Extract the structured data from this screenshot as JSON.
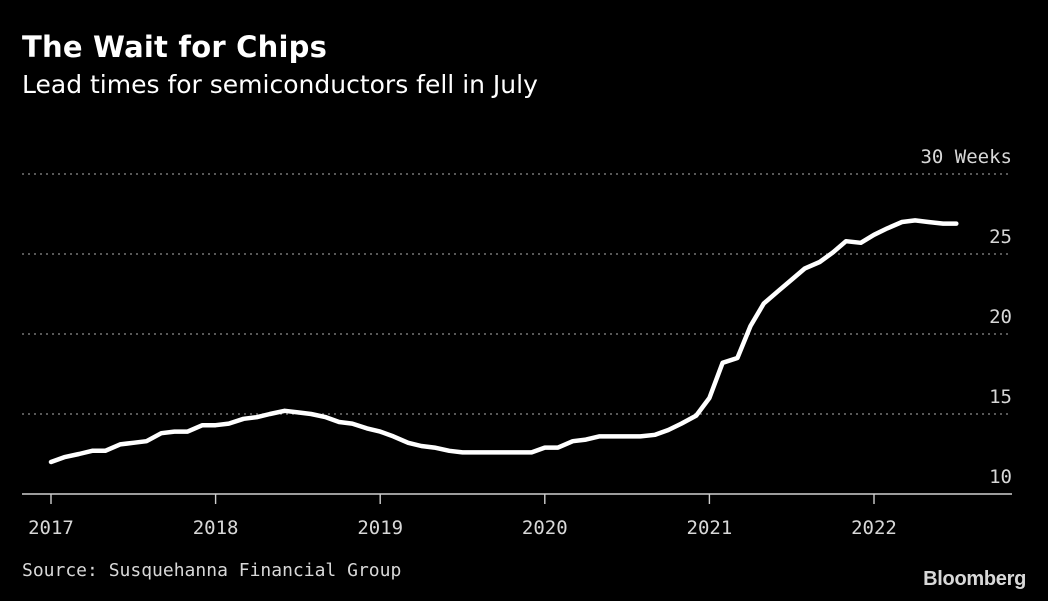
{
  "title": "The Wait for Chips",
  "subtitle": "Lead times for semiconductors fell in July",
  "source": "Source: Susquehanna Financial Group",
  "brand": "Bloomberg",
  "colors": {
    "background": "#000000",
    "line": "#ffffff",
    "grid": "#8c8c8c",
    "text": "#d8d8d8"
  },
  "chart_data": {
    "type": "line",
    "title": "The Wait for Chips",
    "subtitle": "Lead times for semiconductors fell in July",
    "xlabel": "",
    "ylabel": "Weeks",
    "y_unit_label": "30 Weeks",
    "xlim": [
      2017,
      2022.85
    ],
    "ylim": [
      10,
      30
    ],
    "x_ticks": [
      2017,
      2018,
      2019,
      2020,
      2021,
      2022
    ],
    "x_tick_labels": [
      "2017",
      "2018",
      "2019",
      "2020",
      "2021",
      "2022"
    ],
    "y_ticks": [
      10,
      15,
      20,
      25,
      30
    ],
    "y_tick_labels": [
      "10",
      "15",
      "20",
      "25",
      "30 Weeks"
    ],
    "grid": "horizontal dotted",
    "legend": "none",
    "series": [
      {
        "x": [
          2017.0,
          2017.08,
          2017.17,
          2017.25,
          2017.33,
          2017.42,
          2017.5,
          2017.58,
          2017.67,
          2017.75,
          2017.83,
          2017.92,
          2018.0,
          2018.08,
          2018.17,
          2018.25,
          2018.33,
          2018.42,
          2018.5,
          2018.58,
          2018.67,
          2018.75,
          2018.83,
          2018.92,
          2019.0,
          2019.08,
          2019.17,
          2019.25,
          2019.33,
          2019.42,
          2019.5,
          2019.58,
          2019.67,
          2019.75,
          2019.83,
          2019.92,
          2020.0,
          2020.08,
          2020.17,
          2020.25,
          2020.33,
          2020.42,
          2020.5,
          2020.58,
          2020.67,
          2020.75,
          2020.83,
          2020.92,
          2021.0,
          2021.08,
          2021.17,
          2021.25,
          2021.33,
          2021.42,
          2021.5,
          2021.58,
          2021.67,
          2021.75,
          2021.83,
          2021.92,
          2022.0,
          2022.08,
          2022.17,
          2022.25,
          2022.33,
          2022.42,
          2022.5
        ],
        "values": [
          12.0,
          12.3,
          12.5,
          12.7,
          12.7,
          13.1,
          13.2,
          13.3,
          13.8,
          13.9,
          13.9,
          14.3,
          14.3,
          14.4,
          14.7,
          14.8,
          15.0,
          15.2,
          15.1,
          15.0,
          14.8,
          14.5,
          14.4,
          14.1,
          13.9,
          13.6,
          13.2,
          13.0,
          12.9,
          12.7,
          12.6,
          12.6,
          12.6,
          12.6,
          12.6,
          12.6,
          12.9,
          12.9,
          13.3,
          13.4,
          13.6,
          13.6,
          13.6,
          13.6,
          13.7,
          14.0,
          14.4,
          14.9,
          16.0,
          18.2,
          18.5,
          20.5,
          21.9,
          22.7,
          23.4,
          24.1,
          24.5,
          25.1,
          25.8,
          25.7,
          26.2,
          26.6,
          27.0,
          27.1,
          27.0,
          26.9,
          26.9
        ]
      }
    ]
  }
}
